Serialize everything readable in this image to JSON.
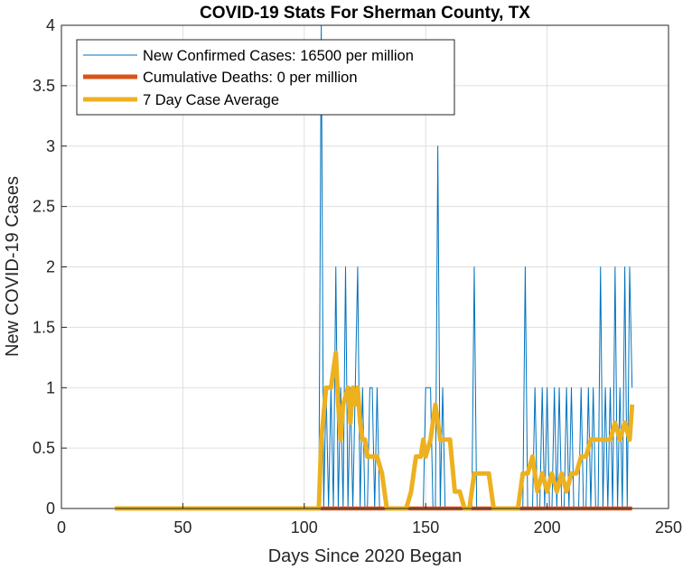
{
  "chart_data": {
    "type": "line",
    "title": "COVID-19 Stats For Sherman County, TX",
    "xlabel": "Days Since 2020 Began",
    "ylabel": "New COVID-19 Cases",
    "xlim": [
      0,
      250
    ],
    "ylim": [
      0,
      4
    ],
    "xticks": [
      0,
      50,
      100,
      150,
      200,
      250
    ],
    "xtick_labels": [
      "0",
      "50",
      "100",
      "150",
      "200",
      "250"
    ],
    "yticks": [
      0,
      0.5,
      1,
      1.5,
      2,
      2.5,
      3,
      3.5,
      4
    ],
    "ytick_labels": [
      "0",
      "0.5",
      "1",
      "1.5",
      "2",
      "2.5",
      "3",
      "3.5",
      "4"
    ],
    "grid": true,
    "legend_position": "top-left",
    "series": [
      {
        "name": "New Confirmed Cases: 16500 per million",
        "color": "#0072BD",
        "x": [
          22,
          106,
          107,
          108,
          109,
          110,
          111,
          112,
          113,
          114,
          115,
          116,
          117,
          118,
          119,
          120,
          121,
          122,
          123,
          124,
          125,
          126,
          127,
          128,
          129,
          130,
          131,
          132,
          133,
          134,
          135,
          136,
          137,
          138,
          139,
          140,
          141,
          142,
          143,
          144,
          145,
          146,
          147,
          148,
          149,
          150,
          151,
          152,
          153,
          154,
          155,
          156,
          157,
          158,
          159,
          160,
          161,
          162,
          163,
          164,
          165,
          166,
          167,
          168,
          169,
          170,
          171,
          172,
          173,
          174,
          175,
          176,
          177,
          178,
          179,
          180,
          181,
          182,
          183,
          184,
          185,
          186,
          187,
          188,
          189,
          190,
          191,
          192,
          193,
          194,
          195,
          196,
          197,
          198,
          199,
          200,
          201,
          202,
          203,
          204,
          205,
          206,
          207,
          208,
          209,
          210,
          211,
          212,
          213,
          214,
          215,
          216,
          217,
          218,
          219,
          220,
          221,
          222,
          223,
          224,
          225,
          226,
          227,
          228,
          229,
          230,
          231,
          232,
          233,
          234,
          235
        ],
        "y": [
          0,
          0,
          4,
          0,
          1,
          0,
          1,
          0,
          2,
          0,
          1,
          0,
          2,
          0,
          1,
          0,
          1,
          2,
          0,
          1,
          0,
          0,
          1,
          1,
          0,
          1,
          0,
          0,
          0,
          0,
          0,
          0,
          0,
          0,
          0,
          0,
          0,
          0,
          0,
          0,
          0,
          0,
          0,
          0,
          0,
          1,
          1,
          1,
          0,
          0,
          3,
          0,
          1,
          0,
          0,
          0,
          0,
          0,
          0,
          0,
          0,
          0,
          0,
          0,
          0,
          2,
          0,
          0,
          0,
          0,
          0,
          0,
          0,
          0,
          0,
          0,
          0,
          0,
          0,
          0,
          0,
          0,
          0,
          0,
          0,
          0,
          2,
          0,
          0,
          0,
          1,
          0,
          0,
          1,
          0,
          1,
          0,
          0,
          1,
          0,
          1,
          0,
          0,
          1,
          0,
          1,
          0,
          0,
          0,
          1,
          0,
          0,
          1,
          0,
          1,
          0,
          0,
          2,
          0,
          1,
          0,
          1,
          0,
          2,
          0,
          1,
          0,
          2,
          0,
          2,
          1
        ]
      },
      {
        "name": "Cumulative Deaths: 0 per million",
        "color": "#D95319",
        "x": [
          106,
          235
        ],
        "y": [
          0,
          0
        ]
      },
      {
        "name": "7 Day Case Average",
        "color": "#EDB120",
        "x": [
          22,
          106,
          107,
          109,
          111,
          113,
          114,
          115,
          116,
          118,
          119,
          120,
          121,
          122,
          123,
          124,
          125,
          126,
          128,
          130,
          132,
          134,
          136,
          138,
          140,
          142,
          144,
          146,
          148,
          149,
          150,
          152,
          154,
          156,
          158,
          160,
          162,
          164,
          166,
          168,
          170,
          172,
          174,
          176,
          178,
          180,
          182,
          184,
          186,
          188,
          190,
          192,
          194,
          196,
          198,
          200,
          202,
          204,
          206,
          208,
          210,
          212,
          214,
          216,
          218,
          220,
          222,
          224,
          226,
          228,
          230,
          232,
          234,
          235
        ],
        "y": [
          0,
          0,
          0.57,
          1,
          1,
          1.29,
          0.86,
          0.57,
          0.86,
          1,
          0.71,
          1,
          0.86,
          1,
          0.71,
          0.57,
          0.57,
          0.43,
          0.43,
          0.43,
          0.29,
          0,
          0,
          0,
          0,
          0,
          0.14,
          0.43,
          0.43,
          0.57,
          0.43,
          0.57,
          0.86,
          0.57,
          0.57,
          0.57,
          0.14,
          0.14,
          0,
          0,
          0.29,
          0.29,
          0.29,
          0.29,
          0,
          0,
          0,
          0,
          0,
          0,
          0.29,
          0.29,
          0.43,
          0.14,
          0.29,
          0.14,
          0.29,
          0.14,
          0.29,
          0.14,
          0.29,
          0.29,
          0.43,
          0.43,
          0.57,
          0.57,
          0.57,
          0.57,
          0.57,
          0.71,
          0.57,
          0.71,
          0.57,
          0.86
        ]
      }
    ]
  }
}
